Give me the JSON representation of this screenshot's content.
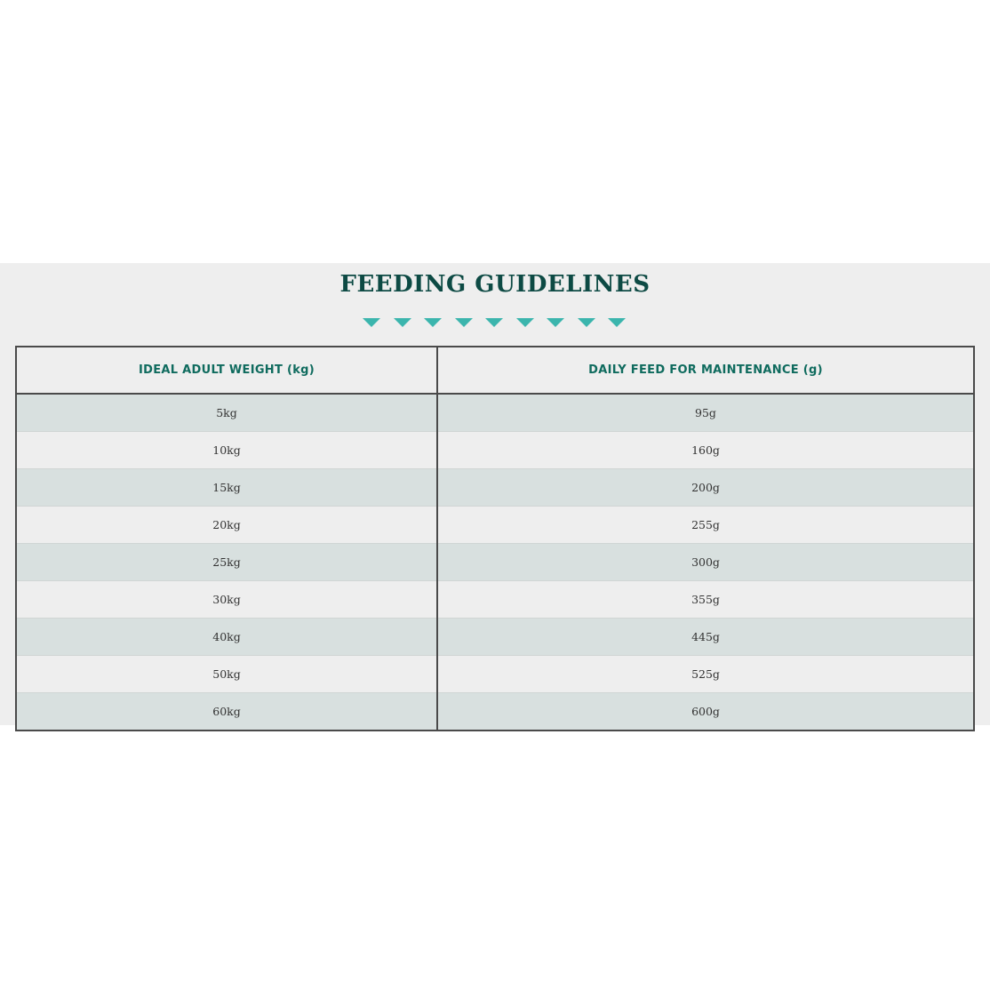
{
  "title": "FEEDING GUIDELINES",
  "decoration": {
    "icon": "triangle-down-icon",
    "count": 9,
    "color": "#3bb5ad"
  },
  "colors": {
    "title": "#0d4a44",
    "header": "#0f6b5e",
    "row_alt": "#d8e0df",
    "background": "#eeeeee"
  },
  "table": {
    "headers": [
      "IDEAL ADULT WEIGHT (kg)",
      "DAILY FEED FOR MAINTENANCE (g)"
    ],
    "rows": [
      [
        "5kg",
        "95g"
      ],
      [
        "10kg",
        "160g"
      ],
      [
        "15kg",
        "200g"
      ],
      [
        "20kg",
        "255g"
      ],
      [
        "25kg",
        "300g"
      ],
      [
        "30kg",
        "355g"
      ],
      [
        "40kg",
        "445g"
      ],
      [
        "50kg",
        "525g"
      ],
      [
        "60kg",
        "600g"
      ]
    ]
  }
}
